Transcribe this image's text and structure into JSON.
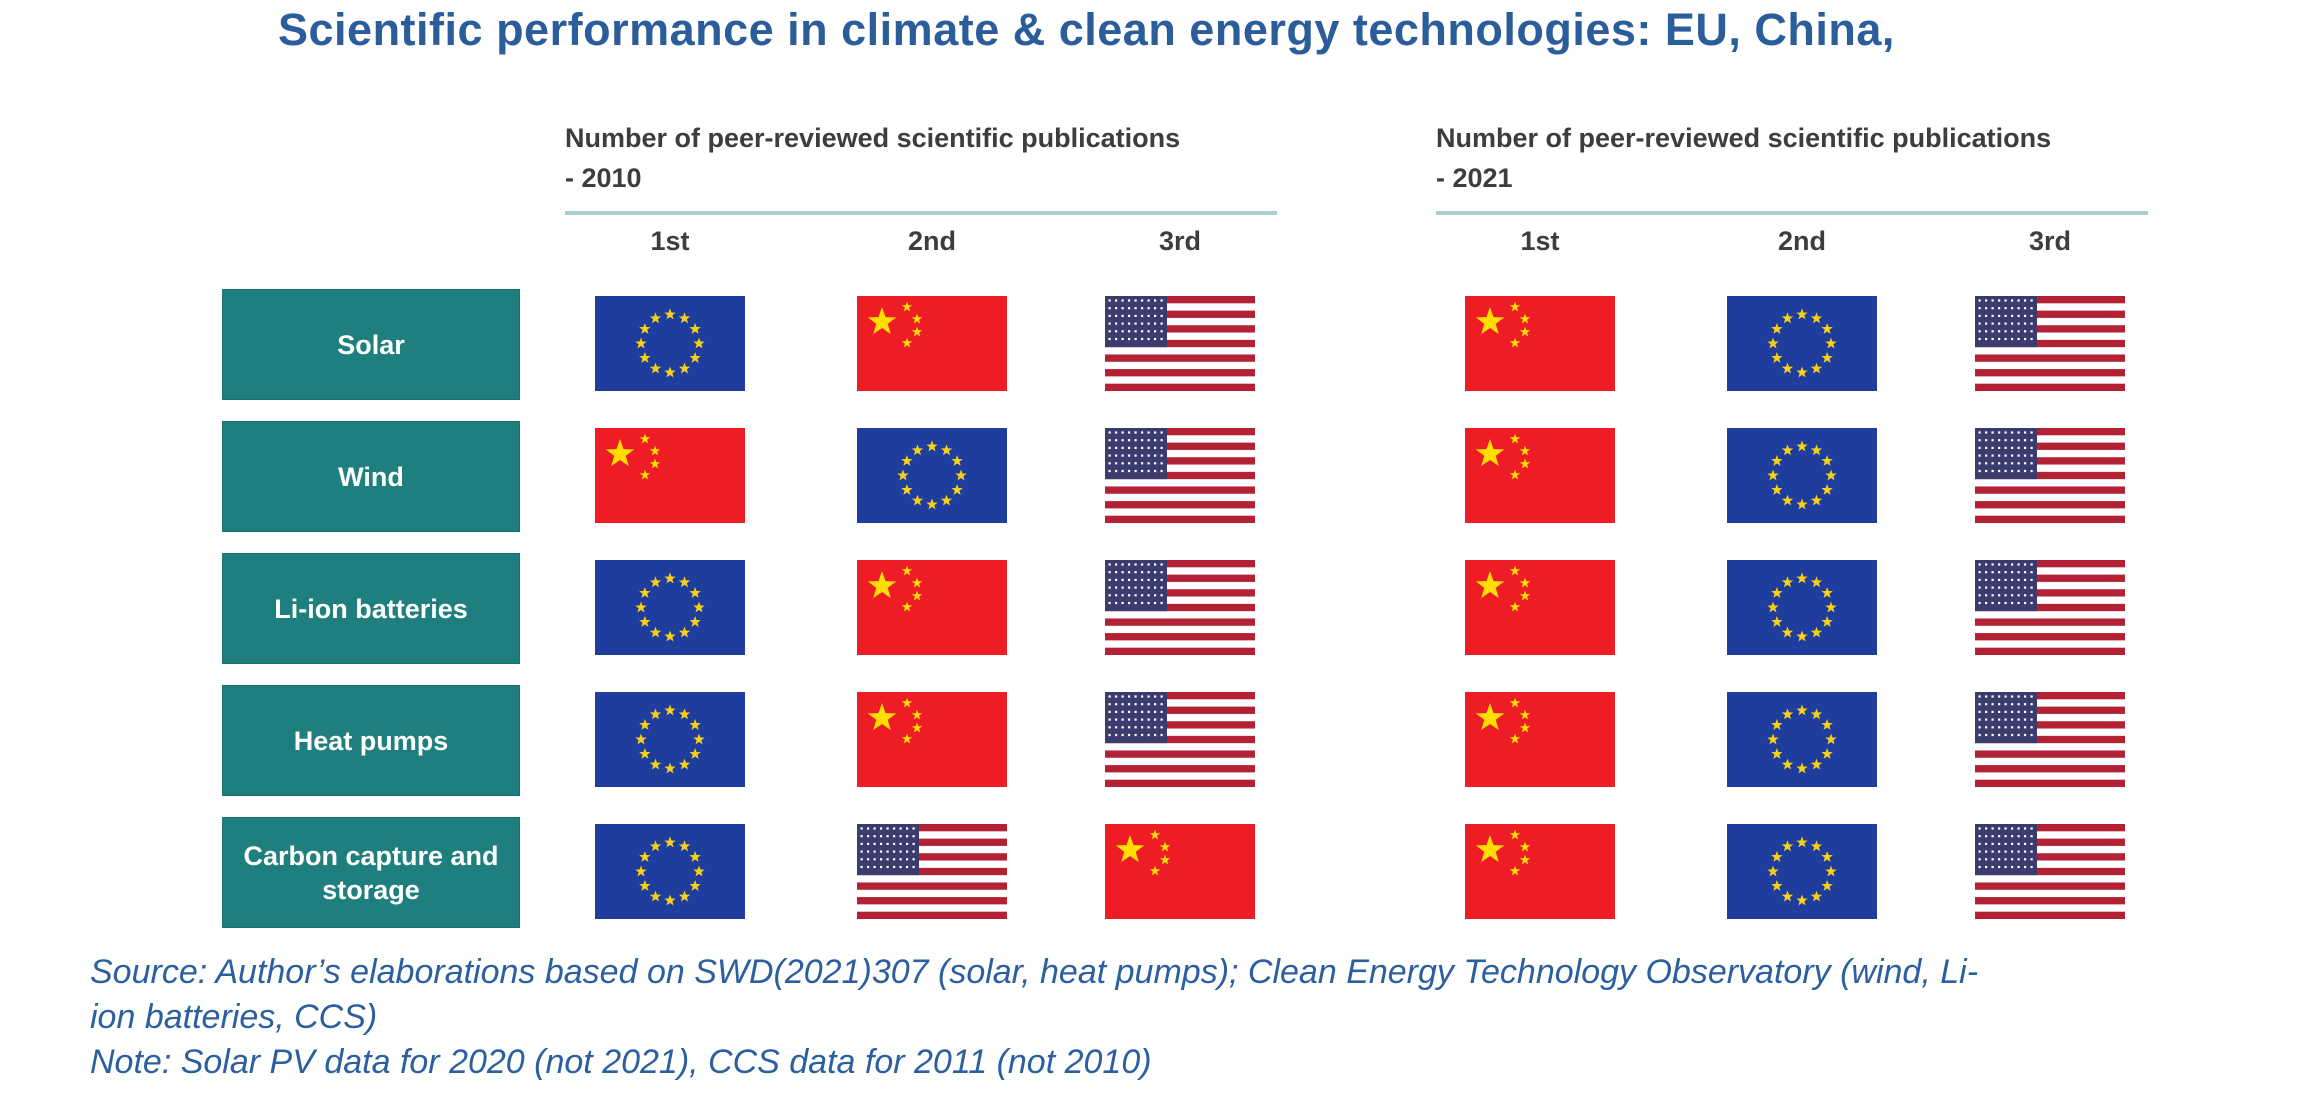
{
  "title": "Scientific performance in climate & clean energy technologies: EU, China,",
  "groups": [
    {
      "header_line1": "Number of peer-reviewed scientific publications",
      "header_line2": "- 2010",
      "rank_labels": [
        "1st",
        "2nd",
        "3rd"
      ]
    },
    {
      "header_line1": "Number of peer-reviewed scientific publications",
      "header_line2": "- 2021",
      "rank_labels": [
        "1st",
        "2nd",
        "3rd"
      ]
    }
  ],
  "rows": [
    {
      "label": "Solar",
      "ranks_2010": [
        "eu",
        "china",
        "usa"
      ],
      "ranks_2021": [
        "china",
        "eu",
        "usa"
      ]
    },
    {
      "label": "Wind",
      "ranks_2010": [
        "china",
        "eu",
        "usa"
      ],
      "ranks_2021": [
        "china",
        "eu",
        "usa"
      ]
    },
    {
      "label": "Li-ion batteries",
      "ranks_2010": [
        "eu",
        "china",
        "usa"
      ],
      "ranks_2021": [
        "china",
        "eu",
        "usa"
      ]
    },
    {
      "label": "Heat pumps",
      "ranks_2010": [
        "eu",
        "china",
        "usa"
      ],
      "ranks_2021": [
        "china",
        "eu",
        "usa"
      ]
    },
    {
      "label": "Carbon capture and storage",
      "ranks_2010": [
        "eu",
        "usa",
        "china"
      ],
      "ranks_2021": [
        "china",
        "eu",
        "usa"
      ]
    }
  ],
  "flag_names": {
    "eu": "European Union",
    "china": "China",
    "usa": "United States"
  },
  "footer": {
    "lines": [
      "Source: Author’s elaborations based on SWD(2021)307 (solar, heat pumps); Clean Energy Technology Observatory (wind, Li-",
      "ion batteries, CCS)",
      "Note: Solar PV data for 2020 (not 2021), CCS data for 2011 (not 2010)"
    ]
  },
  "colors": {
    "title_blue": "#2b5d9b",
    "footer_blue": "#2b5fa0",
    "label_teal": "#1e7f7e",
    "header_gray": "#3d3d3d",
    "underline_teal": "#a9cdd2",
    "eu_blue": "#1e3d9d",
    "eu_star_yellow": "#f7d117",
    "china_red": "#ee1c25",
    "china_star_yellow": "#ffde00",
    "us_red": "#b22234",
    "us_canton_blue": "#3c3b6e"
  },
  "chart_data": {
    "type": "table",
    "title": "Scientific performance in climate & clean energy technologies: EU, China,",
    "column_groups": [
      "Number of peer-reviewed scientific publications - 2010",
      "Number of peer-reviewed scientific publications - 2021"
    ],
    "columns": [
      "1st",
      "2nd",
      "3rd"
    ],
    "row_categories": [
      "Solar",
      "Wind",
      "Li-ion batteries",
      "Heat pumps",
      "Carbon capture and storage"
    ],
    "rankings_2010": [
      [
        "EU",
        "China",
        "USA"
      ],
      [
        "China",
        "EU",
        "USA"
      ],
      [
        "EU",
        "China",
        "USA"
      ],
      [
        "EU",
        "China",
        "USA"
      ],
      [
        "EU",
        "USA",
        "China"
      ]
    ],
    "rankings_2021": [
      [
        "China",
        "EU",
        "USA"
      ],
      [
        "China",
        "EU",
        "USA"
      ],
      [
        "China",
        "EU",
        "USA"
      ],
      [
        "China",
        "EU",
        "USA"
      ],
      [
        "China",
        "EU",
        "USA"
      ]
    ],
    "annotations": [
      "Source: Author’s elaborations based on SWD(2021)307 (solar, heat pumps); Clean Energy Technology Observatory (wind, Li-ion batteries, CCS)",
      "Note: Solar PV data for 2020 (not 2021), CCS data for 2011 (not 2010)"
    ]
  }
}
